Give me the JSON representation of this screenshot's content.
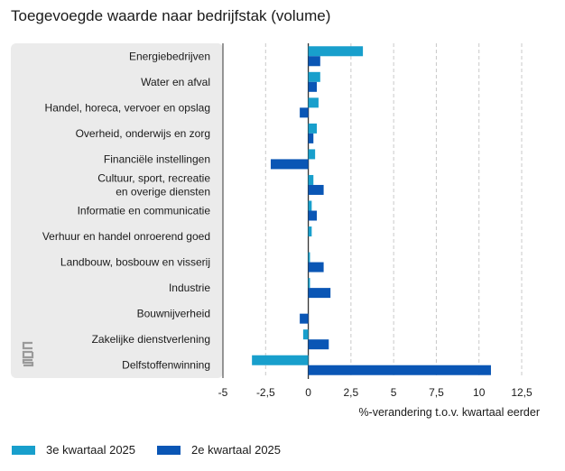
{
  "chart_data": {
    "type": "bar",
    "orientation": "horizontal",
    "title": "Toegevoegde waarde naar bedrijfstak (volume)",
    "xlabel": "%-verandering t.o.v. kwartaal eerder",
    "ylabel": "",
    "xlim": [
      -5,
      12.5
    ],
    "xticks": [
      "-5",
      "-2,5",
      "0",
      "2,5",
      "5",
      "7,5",
      "10",
      "12,5"
    ],
    "xtick_values": [
      -5,
      -2.5,
      0,
      2.5,
      5,
      7.5,
      10,
      12.5
    ],
    "grid": true,
    "categories": [
      [
        "Energiebedrijven"
      ],
      [
        "Water en afval"
      ],
      [
        "Handel, horeca, vervoer en opslag"
      ],
      [
        "Overheid, onderwijs en zorg"
      ],
      [
        "Financiële instellingen"
      ],
      [
        "Cultuur, sport, recreatie",
        "en overige diensten"
      ],
      [
        "Informatie en communicatie"
      ],
      [
        "Verhuur en handel onroerend goed"
      ],
      [
        "Landbouw, bosbouw en visserij"
      ],
      [
        "Industrie"
      ],
      [
        "Bouwnijverheid"
      ],
      [
        "Zakelijke dienstverlening"
      ],
      [
        "Delfstoffenwinning"
      ]
    ],
    "series": [
      {
        "name": "3e kwartaal 2025",
        "color": "#189fcc",
        "values": [
          3.2,
          0.7,
          0.6,
          0.5,
          0.4,
          0.3,
          0.2,
          0.2,
          0.1,
          0.1,
          0.0,
          -0.3,
          -3.3
        ]
      },
      {
        "name": "2e kwartaal 2025",
        "color": "#0a56b5",
        "values": [
          0.7,
          0.5,
          -0.5,
          0.3,
          -2.2,
          0.9,
          0.5,
          0.0,
          0.9,
          1.3,
          -0.5,
          1.2,
          10.7
        ]
      }
    ],
    "legend_position": "bottom-left"
  }
}
